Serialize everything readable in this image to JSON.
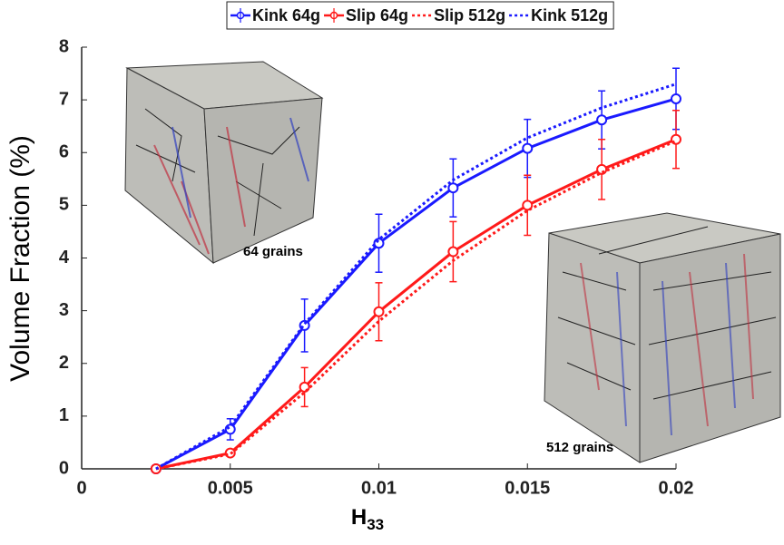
{
  "chart_data": {
    "type": "line",
    "xlabel": "H",
    "xlabel_subscript": "33",
    "ylabel": "Volume Fraction (%)",
    "x": [
      0.0025,
      0.005,
      0.0075,
      0.01,
      0.0125,
      0.015,
      0.0175,
      0.02
    ],
    "xlim": [
      0,
      0.02
    ],
    "xticks": [
      0,
      0.005,
      0.01,
      0.015,
      0.02
    ],
    "ylim": [
      0,
      8
    ],
    "yticks": [
      0,
      1,
      2,
      3,
      4,
      5,
      6,
      7,
      8
    ],
    "legend": "top",
    "series": [
      {
        "name": "Kink 64g",
        "color": "#1a1aff",
        "linestyle": "solid",
        "marker": "circle",
        "values": [
          0,
          0.75,
          2.72,
          4.28,
          5.33,
          6.08,
          6.62,
          7.02
        ],
        "errors": [
          0,
          0.2,
          0.5,
          0.55,
          0.55,
          0.55,
          0.55,
          0.58
        ]
      },
      {
        "name": "Slip 64g",
        "color": "#ff1a1a",
        "linestyle": "solid",
        "marker": "circle",
        "values": [
          0,
          0.3,
          1.55,
          2.98,
          4.12,
          5.0,
          5.68,
          6.25
        ],
        "errors": [
          0,
          0.05,
          0.37,
          0.55,
          0.57,
          0.57,
          0.57,
          0.55
        ]
      },
      {
        "name": "Slip 512g",
        "color": "#ff1a1a",
        "linestyle": "dotted",
        "marker": "none",
        "values": [
          0,
          0.28,
          1.45,
          2.8,
          3.95,
          4.9,
          5.62,
          6.22
        ]
      },
      {
        "name": "Kink 512g",
        "color": "#1a1aff",
        "linestyle": "dotted",
        "marker": "none",
        "values": [
          0,
          0.8,
          2.75,
          4.35,
          5.48,
          6.28,
          6.85,
          7.3
        ]
      }
    ],
    "annotations": [
      "64 grains",
      "512 grains"
    ]
  }
}
